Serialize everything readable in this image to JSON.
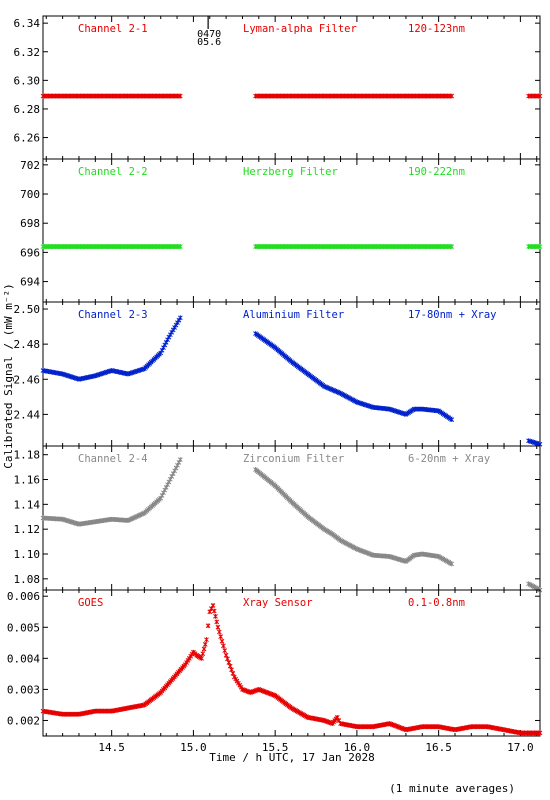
{
  "figure": {
    "ylabel": "Calibrated Signal / (mW m⁻²)",
    "xlabel": "Time / h UTC, 17 Jan 2028",
    "note": "(1 minute averages)",
    "marker_text": [
      "0470",
      "05.6"
    ]
  },
  "colors": {
    "red": "#e60000",
    "green": "#22dd22",
    "blue": "#0022cc",
    "gray": "#888888",
    "axis": "#000000"
  },
  "chart_data": [
    {
      "type": "scatter",
      "panel": "Channel 2-1",
      "labels": [
        "Channel 2-1",
        "Lyman-alpha Filter",
        "120-123nm"
      ],
      "color": "red",
      "ylim": [
        6.245,
        6.345
      ],
      "yticks": [
        "6.34",
        "6.32",
        "6.30",
        "6.28",
        "6.26"
      ],
      "yticks_values": [
        6.34,
        6.32,
        6.3,
        6.28,
        6.26
      ],
      "xlim": [
        14.08,
        17.12
      ],
      "segments": [
        {
          "x": [
            14.08,
            14.92
          ],
          "y": [
            6.289,
            6.289
          ]
        },
        {
          "x": [
            15.38,
            16.58
          ],
          "y": [
            6.289,
            6.289
          ]
        },
        {
          "x": [
            17.05,
            17.12
          ],
          "y": [
            6.289,
            6.289
          ]
        }
      ]
    },
    {
      "type": "scatter",
      "panel": "Channel 2-2",
      "labels": [
        "Channel 2-2",
        "Herzberg Filter",
        "190-222nm"
      ],
      "color": "green",
      "ylim": [
        692.6,
        702.4
      ],
      "yticks": [
        "702",
        "700",
        "698",
        "696",
        "694"
      ],
      "yticks_values": [
        702,
        700,
        698,
        696,
        694
      ],
      "xlim": [
        14.08,
        17.12
      ],
      "segments": [
        {
          "x": [
            14.08,
            14.92
          ],
          "y": [
            696.4,
            696.4
          ]
        },
        {
          "x": [
            15.38,
            16.58
          ],
          "y": [
            696.4,
            696.4
          ]
        },
        {
          "x": [
            17.05,
            17.12
          ],
          "y": [
            696.4,
            696.4
          ]
        }
      ]
    },
    {
      "type": "scatter",
      "panel": "Channel 2-3",
      "labels": [
        "Channel 2-3",
        "Aluminium Filter",
        "17-80nm + Xray"
      ],
      "color": "blue",
      "ylim": [
        2.422,
        2.504
      ],
      "yticks": [
        "2.50",
        "2.48",
        "2.46",
        "2.44"
      ],
      "yticks_values": [
        2.5,
        2.48,
        2.46,
        2.44
      ],
      "xlim": [
        14.08,
        17.12
      ],
      "segments": [
        {
          "x": [
            14.08,
            14.2,
            14.3,
            14.4,
            14.5,
            14.6,
            14.7,
            14.8,
            14.85,
            14.92
          ],
          "y": [
            2.465,
            2.463,
            2.46,
            2.462,
            2.465,
            2.463,
            2.466,
            2.475,
            2.484,
            2.495
          ]
        },
        {
          "x": [
            15.38,
            15.5,
            15.6,
            15.7,
            15.8,
            15.85,
            15.9,
            16.0,
            16.1,
            16.2,
            16.3,
            16.35,
            16.4,
            16.5,
            16.58
          ],
          "y": [
            2.486,
            2.478,
            2.47,
            2.463,
            2.456,
            2.454,
            2.452,
            2.447,
            2.444,
            2.443,
            2.44,
            2.443,
            2.443,
            2.442,
            2.437
          ]
        },
        {
          "x": [
            17.05,
            17.12
          ],
          "y": [
            2.425,
            2.423
          ]
        }
      ]
    },
    {
      "type": "scatter",
      "panel": "Channel 2-4",
      "labels": [
        "Channel 2-4",
        "Zirconium Filter",
        "6-20nm + Xray"
      ],
      "color": "gray",
      "ylim": [
        1.071,
        1.187
      ],
      "yticks": [
        "1.18",
        "1.16",
        "1.14",
        "1.12",
        "1.10",
        "1.08"
      ],
      "yticks_values": [
        1.18,
        1.16,
        1.14,
        1.12,
        1.1,
        1.08
      ],
      "xlim": [
        14.08,
        17.12
      ],
      "segments": [
        {
          "x": [
            14.08,
            14.2,
            14.3,
            14.4,
            14.5,
            14.6,
            14.7,
            14.8,
            14.85,
            14.92
          ],
          "y": [
            1.129,
            1.128,
            1.124,
            1.126,
            1.128,
            1.127,
            1.133,
            1.145,
            1.158,
            1.176
          ]
        },
        {
          "x": [
            15.38,
            15.5,
            15.6,
            15.7,
            15.8,
            15.85,
            15.9,
            16.0,
            16.1,
            16.2,
            16.3,
            16.35,
            16.4,
            16.5,
            16.58
          ],
          "y": [
            1.168,
            1.155,
            1.142,
            1.13,
            1.12,
            1.116,
            1.111,
            1.104,
            1.099,
            1.098,
            1.094,
            1.099,
            1.1,
            1.098,
            1.092
          ]
        },
        {
          "x": [
            17.05,
            17.12
          ],
          "y": [
            1.076,
            1.071
          ]
        }
      ]
    },
    {
      "type": "scatter",
      "panel": "GOES",
      "labels": [
        "GOES",
        "Xray Sensor",
        "0.1-0.8nm"
      ],
      "color": "red",
      "ylim": [
        0.0015,
        0.0062
      ],
      "yticks": [
        "0.006",
        "0.005",
        "0.004",
        "0.003",
        "0.002"
      ],
      "yticks_values": [
        0.006,
        0.005,
        0.004,
        0.003,
        0.002
      ],
      "xlim": [
        14.08,
        17.12
      ],
      "xticks": [
        "14.5",
        "15.0",
        "15.5",
        "16.0",
        "16.5",
        "17.0"
      ],
      "xticks_values": [
        14.5,
        15.0,
        15.5,
        16.0,
        16.5,
        17.0
      ],
      "segments": [
        {
          "x": [
            14.08,
            14.2,
            14.3,
            14.4,
            14.5,
            14.6,
            14.7,
            14.75,
            14.8,
            14.85,
            14.9,
            14.95,
            15.0,
            15.02,
            15.05,
            15.08,
            15.1,
            15.12,
            15.15,
            15.2,
            15.25,
            15.3,
            15.35,
            15.4,
            15.5,
            15.6,
            15.7,
            15.8,
            15.85,
            15.88,
            15.9,
            16.0,
            16.1,
            16.2,
            16.3,
            16.4,
            16.5,
            16.6,
            16.7,
            16.8,
            16.9,
            17.0,
            17.12
          ],
          "y": [
            0.0023,
            0.0022,
            0.0022,
            0.0023,
            0.0023,
            0.0024,
            0.0025,
            0.0027,
            0.0029,
            0.0032,
            0.0035,
            0.0038,
            0.0042,
            0.0041,
            0.004,
            0.0046,
            0.0055,
            0.0057,
            0.005,
            0.0041,
            0.0034,
            0.003,
            0.0029,
            0.003,
            0.0028,
            0.0024,
            0.0021,
            0.002,
            0.0019,
            0.0021,
            0.0019,
            0.0018,
            0.0018,
            0.0019,
            0.0017,
            0.0018,
            0.0018,
            0.0017,
            0.0018,
            0.0018,
            0.0017,
            0.0016,
            0.0016
          ]
        }
      ]
    }
  ]
}
